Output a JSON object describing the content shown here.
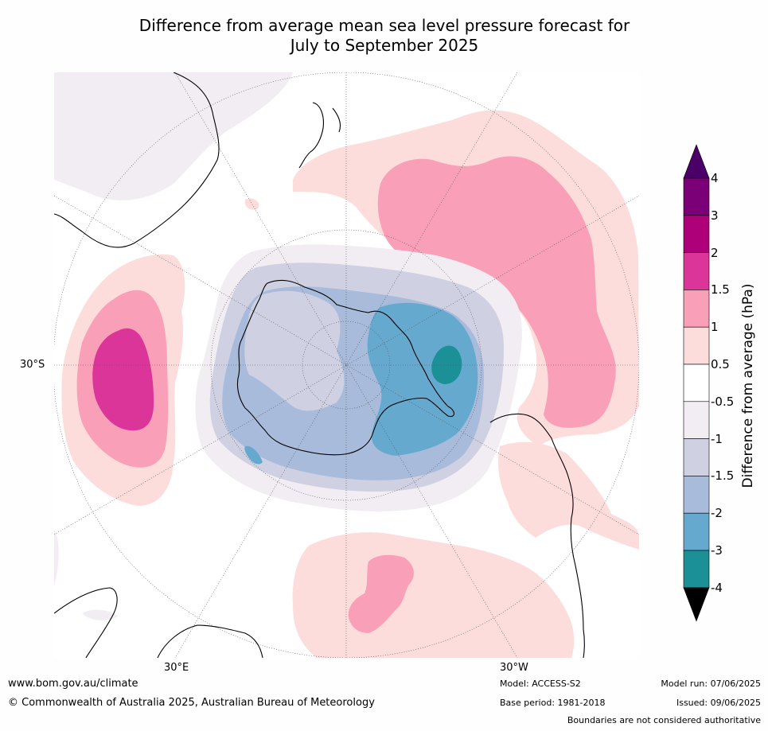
{
  "title": {
    "line1": "Difference from average mean sea level pressure forecast for",
    "line2": "July to September 2025"
  },
  "map": {
    "projection": "south-polar stereographic",
    "labels": {
      "lat": "30°S",
      "lon_east": "30°E",
      "lon_west": "30°W"
    },
    "regions": [
      {
        "id": "antarctica-low",
        "class": "-1 to -2",
        "location": "over Antarctica"
      },
      {
        "id": "weddell-low",
        "class": "-3 to -4",
        "location": "Weddell Sea sector"
      },
      {
        "id": "indian-ocean-high",
        "class": "1.5 to 2",
        "location": "southern Indian Ocean"
      },
      {
        "id": "pacific-high",
        "class": "1 to 1.5",
        "location": "south Pacific"
      },
      {
        "id": "atlantic-high",
        "class": "1 to 1.5",
        "location": "south Atlantic"
      }
    ]
  },
  "colorbar": {
    "title": "Difference from average (hPa)",
    "ticks": [
      "4",
      "3",
      "2",
      "1.5",
      "1",
      "0.5",
      "-0.5",
      "-1",
      "-1.5",
      "-2",
      "-3",
      "-4"
    ],
    "colors": {
      "above_4": "#4b0068",
      "3_to_4": "#7b0077",
      "2_to_3": "#ad0079",
      "1.5_to_2": "#dc359a",
      "1_to_1.5": "#f9a0b8",
      "0.5_to_1": "#fddcdc",
      "-0.5_to_0.5": "#ffffff",
      "-1_to_-0.5": "#f2edf3",
      "-1.5_to_-1": "#d0d0e3",
      "-2_to_-1.5": "#a8bbdb",
      "-3_to_-2": "#65a9cf",
      "-4_to_-3": "#1b9096",
      "below_-4": "#016c59"
    }
  },
  "footer": {
    "url": "www.bom.gov.au/climate",
    "copyright": "© Commonwealth of Australia 2025, Australian Bureau of Meteorology",
    "model": "Model: ACCESS-S2",
    "base_period": "Base period: 1981-2018",
    "model_run": "Model run: 07/06/2025",
    "issued": "Issued: 09/06/2025",
    "disclaimer": "Boundaries are not considered authoritative"
  }
}
